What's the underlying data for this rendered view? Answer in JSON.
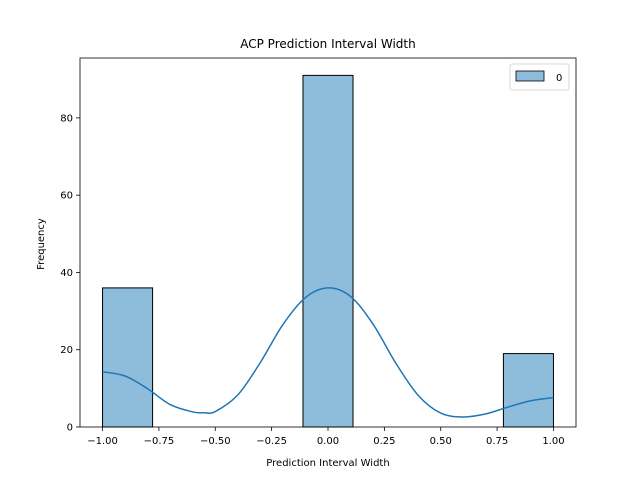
{
  "chart_data": {
    "type": "bar",
    "title": "ACP Prediction Interval Width",
    "xlabel": "Prediction Interval Width",
    "ylabel": "Frequency",
    "xlim": [
      -1.1,
      1.1
    ],
    "ylim": [
      0,
      95.5
    ],
    "x_ticks": [
      -1.0,
      -0.75,
      -0.5,
      -0.25,
      0.0,
      0.25,
      0.5,
      0.75,
      1.0
    ],
    "x_tick_labels": [
      "−1.00",
      "−0.75",
      "−0.50",
      "−0.25",
      "0.00",
      "0.25",
      "0.50",
      "0.75",
      "1.00"
    ],
    "y_ticks": [
      0,
      20,
      40,
      60,
      80
    ],
    "y_tick_labels": [
      "0",
      "20",
      "40",
      "60",
      "80"
    ],
    "bins": [
      {
        "x0": -1.0,
        "x1": -0.778,
        "count": 36
      },
      {
        "x0": -0.111,
        "x1": 0.111,
        "count": 91
      },
      {
        "x0": 0.778,
        "x1": 1.0,
        "count": 19
      }
    ],
    "kde": {
      "x": [
        -1.0,
        -0.9,
        -0.8,
        -0.7,
        -0.6,
        -0.55,
        -0.5,
        -0.4,
        -0.3,
        -0.2,
        -0.1,
        0.0,
        0.1,
        0.2,
        0.3,
        0.4,
        0.5,
        0.6,
        0.7,
        0.8,
        0.9,
        1.0
      ],
      "y": [
        14.3,
        13.2,
        9.9,
        5.8,
        3.9,
        3.7,
        4.0,
        8.3,
        16.7,
        26.5,
        33.5,
        36.0,
        33.8,
        26.6,
        16.6,
        8.2,
        3.6,
        2.6,
        3.4,
        5.2,
        6.8,
        7.6
      ]
    },
    "series": [
      {
        "name": "0",
        "color": "#1f77b4",
        "fill": "#8ebcdb"
      }
    ],
    "legend_position": "top-right",
    "grid": false
  }
}
